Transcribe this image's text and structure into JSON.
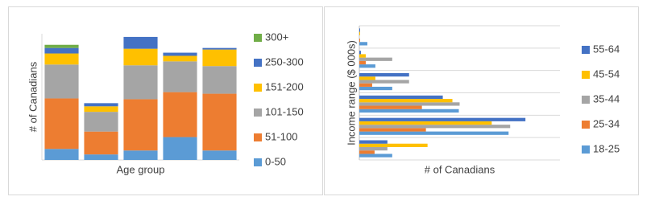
{
  "chart_data": [
    {
      "type": "bar",
      "stacked": true,
      "orientation": "vertical",
      "legend": "right",
      "x_label": "Age group",
      "y_label": "# of Canadians",
      "categories": [
        null,
        null,
        null,
        null,
        null
      ],
      "ylim": [
        0,
        160
      ],
      "series": [
        {
          "name": "0-50",
          "color": "#5b9bd5",
          "values": [
            14,
            7,
            12,
            29,
            12
          ]
        },
        {
          "name": "51-100",
          "color": "#ed7d31",
          "values": [
            64,
            29,
            65,
            57,
            72
          ]
        },
        {
          "name": "101-150",
          "color": "#a5a5a5",
          "values": [
            43,
            25,
            43,
            39,
            35
          ]
        },
        {
          "name": "151-200",
          "color": "#ffc000",
          "values": [
            14,
            7,
            21,
            7,
            21
          ]
        },
        {
          "name": "250-300",
          "color": "#4472c4",
          "values": [
            7,
            4,
            15,
            4,
            2
          ]
        },
        {
          "name": "300+",
          "color": "#70ad47",
          "values": [
            4,
            0,
            0,
            0,
            0
          ]
        }
      ]
    },
    {
      "type": "bar",
      "stacked": false,
      "orientation": "horizontal",
      "legend": "right",
      "x_label": "# of Canadians",
      "y_label": "Income range ($ 000s)",
      "categories": [
        null,
        null,
        null,
        null,
        null,
        null
      ],
      "xlim": [
        0,
        250
      ],
      "series": [
        {
          "name": "18-25",
          "color": "#5b9bd5",
          "values": [
            10,
            20,
            41,
            124,
            186,
            41
          ]
        },
        {
          "name": "25-34",
          "color": "#ed7d31",
          "values": [
            1,
            8,
            16,
            78,
            83,
            19
          ]
        },
        {
          "name": "35-44",
          "color": "#a5a5a5",
          "values": [
            0,
            41,
            62,
            125,
            188,
            35
          ]
        },
        {
          "name": "45-54",
          "color": "#ffc000",
          "values": [
            1,
            8,
            20,
            116,
            165,
            85
          ]
        },
        {
          "name": "55-64",
          "color": "#4472c4",
          "values": [
            1,
            2,
            62,
            104,
            207,
            35
          ]
        }
      ]
    }
  ]
}
